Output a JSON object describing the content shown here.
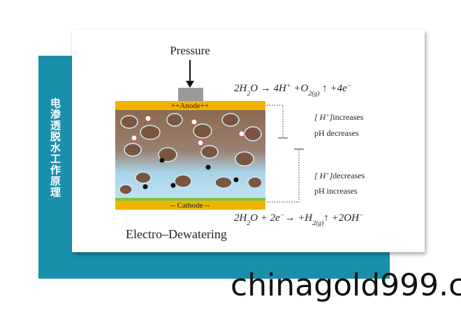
{
  "side_label": "电渗透脱水工作原理",
  "figure": {
    "pressure_label": "Pressure",
    "anode_label": "++Anode++",
    "cathode_label": "-- Cathode --",
    "caption": "Electro–Dewatering",
    "anode_equation": [
      {
        "text": "2H"
      },
      {
        "text": "2",
        "shift": "sub"
      },
      {
        "text": "O → 4H"
      },
      {
        "text": "+",
        "shift": "sup"
      },
      {
        "text": " +O"
      },
      {
        "text": "2(g)",
        "shift": "sub"
      },
      {
        "text": " ↑ +4e"
      },
      {
        "text": "−",
        "shift": "sup"
      }
    ],
    "cathode_equation": [
      {
        "text": "2H"
      },
      {
        "text": "2",
        "shift": "sub"
      },
      {
        "text": "O + 2e"
      },
      {
        "text": "−",
        "shift": "sup"
      },
      {
        "text": "→ +H"
      },
      {
        "text": "2(g)",
        "shift": "sub"
      },
      {
        "text": "↑ +2OH"
      },
      {
        "text": "−",
        "shift": "sup"
      }
    ],
    "anode_effect": {
      "ion": [
        {
          "text": "[ H"
        },
        {
          "text": "+",
          "shift": "sup"
        },
        {
          "text": "]"
        }
      ],
      "trend": "increases",
      "ph": "pH decreases"
    },
    "cathode_effect": {
      "ion": [
        {
          "text": "[ H"
        },
        {
          "text": "+",
          "shift": "sup"
        },
        {
          "text": "]"
        }
      ],
      "trend": "decreases",
      "ph": "pH increases"
    }
  },
  "watermark": "chinagold999.c"
}
